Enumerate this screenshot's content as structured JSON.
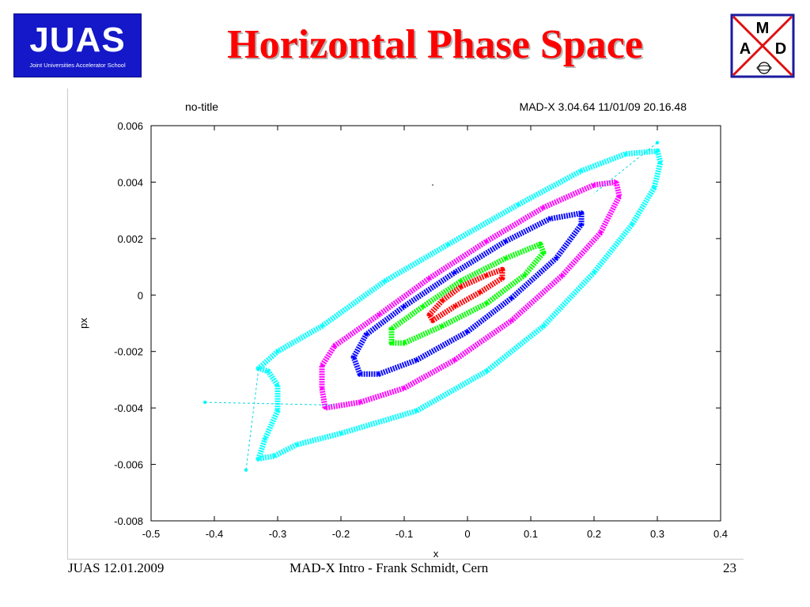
{
  "slide": {
    "title": "Horizontal Phase Space",
    "footer_left": "JUAS 12.01.2009",
    "footer_center": "MAD-X Intro - Frank Schmidt, Cern",
    "footer_right": "23"
  },
  "juas_logo": {
    "text": "JUAS",
    "subtitle": "Joint Universities Accelerator School",
    "color": "#1418c8"
  },
  "madx_logo": {
    "letter_top": "M",
    "letter_left": "A",
    "letter_right": "D",
    "border_color": "#1a1aa0",
    "cross_color": "#e01010"
  },
  "chart_data": {
    "type": "scatter",
    "title": "no-title",
    "header_right": "MAD-X 3.04.64  11/01/09 20.16.48",
    "xlabel": "x",
    "ylabel": "px",
    "xlim": [
      -0.5,
      0.4
    ],
    "ylim": [
      -0.008,
      0.006
    ],
    "xticks": [
      -0.5,
      -0.4,
      -0.3,
      -0.2,
      -0.1,
      0,
      0.1,
      0.2,
      0.3,
      0.4
    ],
    "xtick_labels": [
      "-0.5",
      "-0.4",
      "-0.3",
      "-0.2",
      "-0.1",
      "0",
      "0.1",
      "0.2",
      "0.3",
      "0.4"
    ],
    "yticks": [
      -0.008,
      -0.006,
      -0.004,
      -0.002,
      0,
      0.002,
      0.004,
      0.006
    ],
    "ytick_labels": [
      "-0.008",
      "-0.006",
      "-0.004",
      "-0.002",
      "0",
      "0.002",
      "0.004",
      "0.006"
    ],
    "grid": false,
    "series": [
      {
        "color": "#00ffff",
        "points": [
          [
            0.3,
            0.0051
          ],
          [
            0.305,
            0.0047
          ],
          [
            0.295,
            0.0038
          ],
          [
            0.26,
            0.0025
          ],
          [
            0.2,
            0.0008
          ],
          [
            0.12,
            -0.0011
          ],
          [
            0.03,
            -0.0027
          ],
          [
            -0.08,
            -0.0041
          ],
          [
            -0.2,
            -0.0049
          ],
          [
            -0.27,
            -0.0053
          ],
          [
            -0.305,
            -0.0057
          ],
          [
            -0.33,
            -0.0058
          ],
          [
            -0.32,
            -0.0051
          ],
          [
            -0.3,
            -0.0041
          ],
          [
            -0.3,
            -0.0032
          ],
          [
            -0.315,
            -0.0027
          ],
          [
            -0.33,
            -0.0026
          ],
          [
            -0.3,
            -0.002
          ],
          [
            -0.23,
            -0.0011
          ],
          [
            -0.13,
            0.0005
          ],
          [
            -0.03,
            0.0018
          ],
          [
            0.08,
            0.0032
          ],
          [
            0.18,
            0.0044
          ],
          [
            0.25,
            0.005
          ],
          [
            0.3,
            0.0051
          ]
        ]
      },
      {
        "color": "#ff00ff",
        "points": [
          [
            0.235,
            0.004
          ],
          [
            0.24,
            0.0035
          ],
          [
            0.21,
            0.0022
          ],
          [
            0.15,
            0.0007
          ],
          [
            0.07,
            -0.0009
          ],
          [
            -0.02,
            -0.0023
          ],
          [
            -0.1,
            -0.0033
          ],
          [
            -0.17,
            -0.0038
          ],
          [
            -0.225,
            -0.004
          ],
          [
            -0.23,
            -0.0033
          ],
          [
            -0.23,
            -0.0025
          ],
          [
            -0.21,
            -0.0018
          ],
          [
            -0.14,
            -0.0007
          ],
          [
            -0.06,
            0.0006
          ],
          [
            0.03,
            0.0019
          ],
          [
            0.12,
            0.0031
          ],
          [
            0.2,
            0.0039
          ],
          [
            0.235,
            0.004
          ]
        ]
      },
      {
        "color": "#0000ff",
        "points": [
          [
            0.18,
            0.0029
          ],
          [
            0.18,
            0.0025
          ],
          [
            0.14,
            0.0013
          ],
          [
            0.07,
            -0.0001
          ],
          [
            0.0,
            -0.0013
          ],
          [
            -0.08,
            -0.0023
          ],
          [
            -0.14,
            -0.0028
          ],
          [
            -0.17,
            -0.0028
          ],
          [
            -0.18,
            -0.0022
          ],
          [
            -0.16,
            -0.0014
          ],
          [
            -0.1,
            -0.0004
          ],
          [
            -0.02,
            0.0008
          ],
          [
            0.06,
            0.0019
          ],
          [
            0.13,
            0.0027
          ],
          [
            0.18,
            0.0029
          ]
        ]
      },
      {
        "color": "#00ff00",
        "points": [
          [
            0.115,
            0.0018
          ],
          [
            0.12,
            0.0015
          ],
          [
            0.09,
            0.0007
          ],
          [
            0.03,
            -0.0003
          ],
          [
            -0.04,
            -0.0011
          ],
          [
            -0.1,
            -0.0017
          ],
          [
            -0.12,
            -0.0017
          ],
          [
            -0.12,
            -0.0012
          ],
          [
            -0.07,
            -0.0004
          ],
          [
            -0.01,
            0.0005
          ],
          [
            0.06,
            0.0013
          ],
          [
            0.115,
            0.0018
          ]
        ]
      },
      {
        "color": "#ff0000",
        "points": [
          [
            0.055,
            0.0009
          ],
          [
            0.055,
            0.0006
          ],
          [
            0.02,
            0.0001
          ],
          [
            -0.02,
            -0.0004
          ],
          [
            -0.055,
            -0.0009
          ],
          [
            -0.06,
            -0.0007
          ],
          [
            -0.04,
            -0.0002
          ],
          [
            -0.01,
            0.0003
          ],
          [
            0.03,
            0.0007
          ],
          [
            0.055,
            0.0009
          ]
        ]
      }
    ],
    "outliers": [
      {
        "color": "#00ffff",
        "points": [
          [
            0.3,
            0.0054
          ],
          [
            -0.415,
            -0.0038
          ],
          [
            -0.35,
            -0.0062
          ]
        ]
      },
      {
        "color": "#000000",
        "points": [
          [
            -0.055,
            0.0039
          ]
        ]
      }
    ]
  }
}
